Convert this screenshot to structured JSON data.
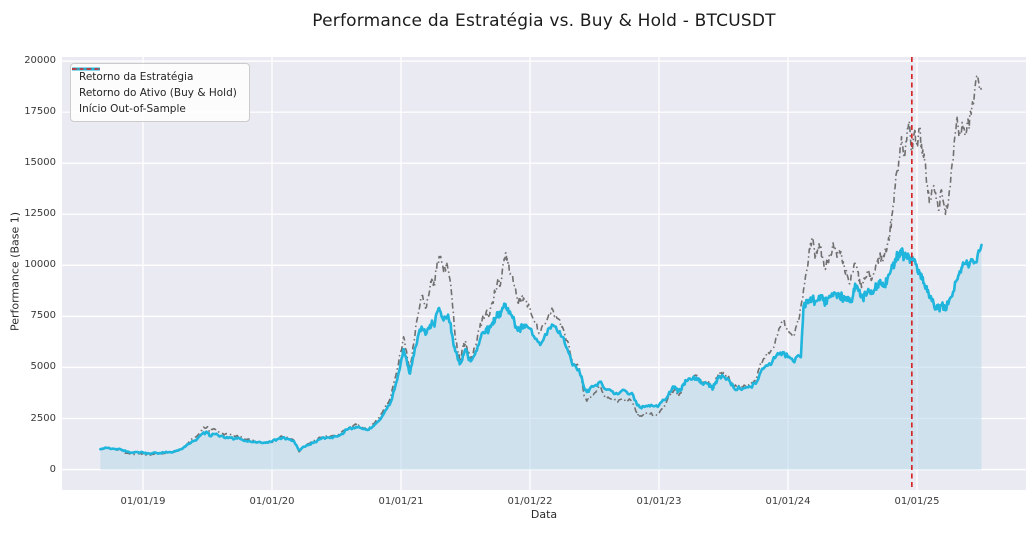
{
  "chart_data": {
    "type": "line",
    "title": "Performance da Estratégia vs. Buy & Hold - BTCUSDT",
    "xlabel": "Data",
    "ylabel": "Performance (Base 1)",
    "grid": true,
    "legend_position": "upper-left",
    "xlim": [
      2018.372,
      2025.845
    ],
    "ylim": [
      -1000,
      20200
    ],
    "y_ticks": [
      0,
      2500,
      5000,
      7500,
      10000,
      12500,
      15000,
      17500,
      20000
    ],
    "x_tick_positions": [
      2019,
      2020,
      2021,
      2022,
      2023,
      2024,
      2025
    ],
    "x_tick_labels": [
      "01/01/19",
      "01/01/20",
      "01/01/21",
      "01/01/22",
      "01/01/23",
      "01/01/24",
      "01/01/25"
    ],
    "vline": {
      "x": 2024.96,
      "label": "Início Out-of-Sample",
      "color": "#d62728",
      "style": "dashed"
    },
    "style": {
      "plot_bg": "#eaeaf2",
      "grid_color": "#ffffff",
      "noise_rel_amplitude": 0.022,
      "noise_abs_amplitude": 20
    },
    "x": [
      2018.67,
      2018.72,
      2018.78,
      2018.83,
      2018.87,
      2018.92,
      2018.96,
      2019.0,
      2019.04,
      2019.08,
      2019.13,
      2019.17,
      2019.21,
      2019.25,
      2019.29,
      2019.33,
      2019.38,
      2019.42,
      2019.46,
      2019.5,
      2019.52,
      2019.54,
      2019.58,
      2019.63,
      2019.67,
      2019.71,
      2019.75,
      2019.79,
      2019.83,
      2019.88,
      2019.92,
      2019.96,
      2020.0,
      2020.04,
      2020.08,
      2020.13,
      2020.17,
      2020.21,
      2020.25,
      2020.29,
      2020.33,
      2020.38,
      2020.42,
      2020.46,
      2020.5,
      2020.54,
      2020.58,
      2020.63,
      2020.67,
      2020.71,
      2020.75,
      2020.79,
      2020.83,
      2020.88,
      2020.92,
      2020.96,
      2021.0,
      2021.02,
      2021.05,
      2021.07,
      2021.1,
      2021.13,
      2021.16,
      2021.19,
      2021.22,
      2021.24,
      2021.26,
      2021.28,
      2021.3,
      2021.33,
      2021.36,
      2021.38,
      2021.4,
      2021.42,
      2021.44,
      2021.46,
      2021.48,
      2021.5,
      2021.52,
      2021.54,
      2021.56,
      2021.58,
      2021.61,
      2021.63,
      2021.66,
      2021.68,
      2021.71,
      2021.73,
      2021.75,
      2021.77,
      2021.79,
      2021.81,
      2021.83,
      2021.85,
      2021.88,
      2021.9,
      2021.92,
      2021.94,
      2021.96,
      2022.0,
      2022.04,
      2022.08,
      2022.13,
      2022.17,
      2022.21,
      2022.25,
      2022.29,
      2022.33,
      2022.38,
      2022.42,
      2022.44,
      2022.46,
      2022.5,
      2022.54,
      2022.58,
      2022.63,
      2022.67,
      2022.71,
      2022.75,
      2022.79,
      2022.83,
      2022.85,
      2022.88,
      2022.92,
      2022.96,
      2023.0,
      2023.04,
      2023.08,
      2023.1,
      2023.13,
      2023.15,
      2023.17,
      2023.19,
      2023.21,
      2023.25,
      2023.29,
      2023.31,
      2023.33,
      2023.38,
      2023.4,
      2023.42,
      2023.44,
      2023.46,
      2023.5,
      2023.54,
      2023.58,
      2023.63,
      2023.67,
      2023.71,
      2023.75,
      2023.79,
      2023.83,
      2023.88,
      2023.92,
      2023.96,
      2024.0,
      2024.04,
      2024.08,
      2024.1,
      2024.12,
      2024.15,
      2024.17,
      2024.19,
      2024.21,
      2024.23,
      2024.25,
      2024.27,
      2024.29,
      2024.31,
      2024.33,
      2024.35,
      2024.38,
      2024.4,
      2024.42,
      2024.44,
      2024.46,
      2024.48,
      2024.5,
      2024.52,
      2024.54,
      2024.56,
      2024.58,
      2024.6,
      2024.63,
      2024.65,
      2024.67,
      2024.69,
      2024.71,
      2024.73,
      2024.75,
      2024.77,
      2024.79,
      2024.81,
      2024.83,
      2024.86,
      2024.88,
      2024.9,
      2024.92,
      2024.94,
      2024.96,
      2024.98,
      2025.0,
      2025.02,
      2025.04,
      2025.06,
      2025.08,
      2025.1,
      2025.13,
      2025.15,
      2025.17,
      2025.19,
      2025.22,
      2025.25,
      2025.28,
      2025.31,
      2025.33,
      2025.35,
      2025.38,
      2025.4,
      2025.42,
      2025.44,
      2025.47,
      2025.5
    ],
    "series": [
      {
        "name": "Retorno da Estratégia",
        "color": "#1fb5dc",
        "style": "solid",
        "line_width": 2.6,
        "fill": true,
        "fill_color": "#b9d8eb",
        "fill_opacity": 0.55,
        "values": [
          1000,
          1060,
          1010,
          980,
          880,
          830,
          860,
          840,
          800,
          820,
          810,
          840,
          860,
          900,
          990,
          1130,
          1380,
          1500,
          1750,
          1820,
          1650,
          1750,
          1700,
          1560,
          1580,
          1500,
          1520,
          1400,
          1380,
          1320,
          1300,
          1340,
          1380,
          1490,
          1550,
          1480,
          1400,
          950,
          1120,
          1230,
          1350,
          1500,
          1560,
          1580,
          1620,
          1750,
          1950,
          2050,
          2100,
          1980,
          1950,
          2150,
          2400,
          2900,
          3300,
          4200,
          5300,
          5900,
          5100,
          4700,
          5600,
          6500,
          7000,
          6600,
          6900,
          7300,
          7000,
          7700,
          7800,
          7300,
          7500,
          7200,
          6500,
          5800,
          5400,
          5200,
          5600,
          5900,
          5500,
          5300,
          5500,
          5800,
          6300,
          6700,
          6900,
          6800,
          7200,
          7400,
          7700,
          7500,
          7900,
          8100,
          7900,
          7600,
          7200,
          6900,
          6800,
          7000,
          6950,
          6900,
          6400,
          6100,
          6600,
          7100,
          6800,
          6500,
          5900,
          5100,
          4900,
          4000,
          3800,
          3900,
          4100,
          4300,
          3950,
          3850,
          3750,
          3850,
          3800,
          3750,
          3150,
          3050,
          3100,
          3150,
          3100,
          3150,
          3400,
          3800,
          3950,
          4000,
          3850,
          3900,
          4200,
          4350,
          4400,
          4500,
          4400,
          4250,
          4200,
          4050,
          4000,
          4300,
          4500,
          4550,
          4400,
          4000,
          3950,
          4000,
          4050,
          4200,
          4800,
          5100,
          5300,
          5700,
          5750,
          5500,
          5300,
          5600,
          5500,
          8000,
          8300,
          8200,
          8400,
          8200,
          8300,
          8500,
          8300,
          8200,
          8400,
          8450,
          8500,
          8400,
          8500,
          8450,
          8300,
          8350,
          8200,
          8400,
          9100,
          8900,
          8500,
          8400,
          8600,
          8700,
          8600,
          8800,
          9000,
          9200,
          9000,
          9000,
          9300,
          9600,
          9900,
          10300,
          10600,
          10800,
          10400,
          10500,
          10400,
          10200,
          10300,
          9900,
          9600,
          9300,
          9000,
          8700,
          8400,
          8100,
          7850,
          7900,
          8050,
          7800,
          8300,
          8700,
          9300,
          9700,
          9900,
          10100,
          9900,
          10300,
          10100,
          10500,
          11000
        ]
      },
      {
        "name": "Retorno do Ativo (Buy & Hold)",
        "color": "#707070",
        "style": "dashdot",
        "line_width": 1.6,
        "fill": false,
        "values": [
          1000,
          1090,
          1000,
          940,
          800,
          740,
          790,
          760,
          720,
          750,
          740,
          790,
          820,
          880,
          1000,
          1180,
          1500,
          1650,
          2000,
          2100,
          1850,
          1980,
          1900,
          1700,
          1730,
          1620,
          1650,
          1480,
          1440,
          1350,
          1310,
          1360,
          1330,
          1500,
          1620,
          1530,
          1430,
          870,
          1130,
          1270,
          1420,
          1570,
          1640,
          1650,
          1680,
          1850,
          2080,
          2150,
          2180,
          2020,
          1990,
          2250,
          2550,
          3100,
          3550,
          4600,
          5800,
          6500,
          5400,
          4950,
          6200,
          7500,
          8500,
          7900,
          8700,
          9400,
          9000,
          10100,
          10400,
          9700,
          10000,
          9300,
          8000,
          6500,
          5800,
          5300,
          6000,
          6300,
          5700,
          5400,
          5700,
          6100,
          6900,
          7400,
          7700,
          7500,
          8200,
          8700,
          9300,
          9000,
          10000,
          10600,
          10100,
          9600,
          9000,
          8400,
          8200,
          8500,
          8300,
          7900,
          7200,
          6700,
          7300,
          7900,
          7400,
          7000,
          6300,
          5300,
          5000,
          3600,
          3350,
          3500,
          3750,
          4100,
          3550,
          3450,
          3350,
          3450,
          3400,
          3350,
          2750,
          2620,
          2680,
          2720,
          2700,
          2750,
          3100,
          3600,
          3800,
          3900,
          3700,
          3750,
          4100,
          4400,
          4450,
          4600,
          4450,
          4300,
          4250,
          4050,
          3950,
          4400,
          4700,
          4750,
          4550,
          4050,
          4000,
          4100,
          4150,
          4350,
          5300,
          5600,
          5950,
          6600,
          7300,
          6900,
          6500,
          7400,
          8000,
          8800,
          9800,
          10800,
          11300,
          10300,
          10800,
          11000,
          10300,
          9800,
          10300,
          10600,
          11100,
          10400,
          10700,
          10200,
          9700,
          9500,
          9100,
          9600,
          10100,
          9700,
          9000,
          9100,
          9400,
          9600,
          9300,
          9700,
          10100,
          10500,
          10200,
          10600,
          11000,
          11600,
          12600,
          13800,
          15200,
          16300,
          15400,
          16100,
          17050,
          15600,
          16500,
          16000,
          16700,
          15400,
          15100,
          13900,
          13100,
          13900,
          13200,
          12700,
          13700,
          12500,
          13600,
          15100,
          17300,
          16400,
          17000,
          16400,
          16900,
          17400,
          18000,
          19300,
          18600
        ]
      }
    ]
  }
}
